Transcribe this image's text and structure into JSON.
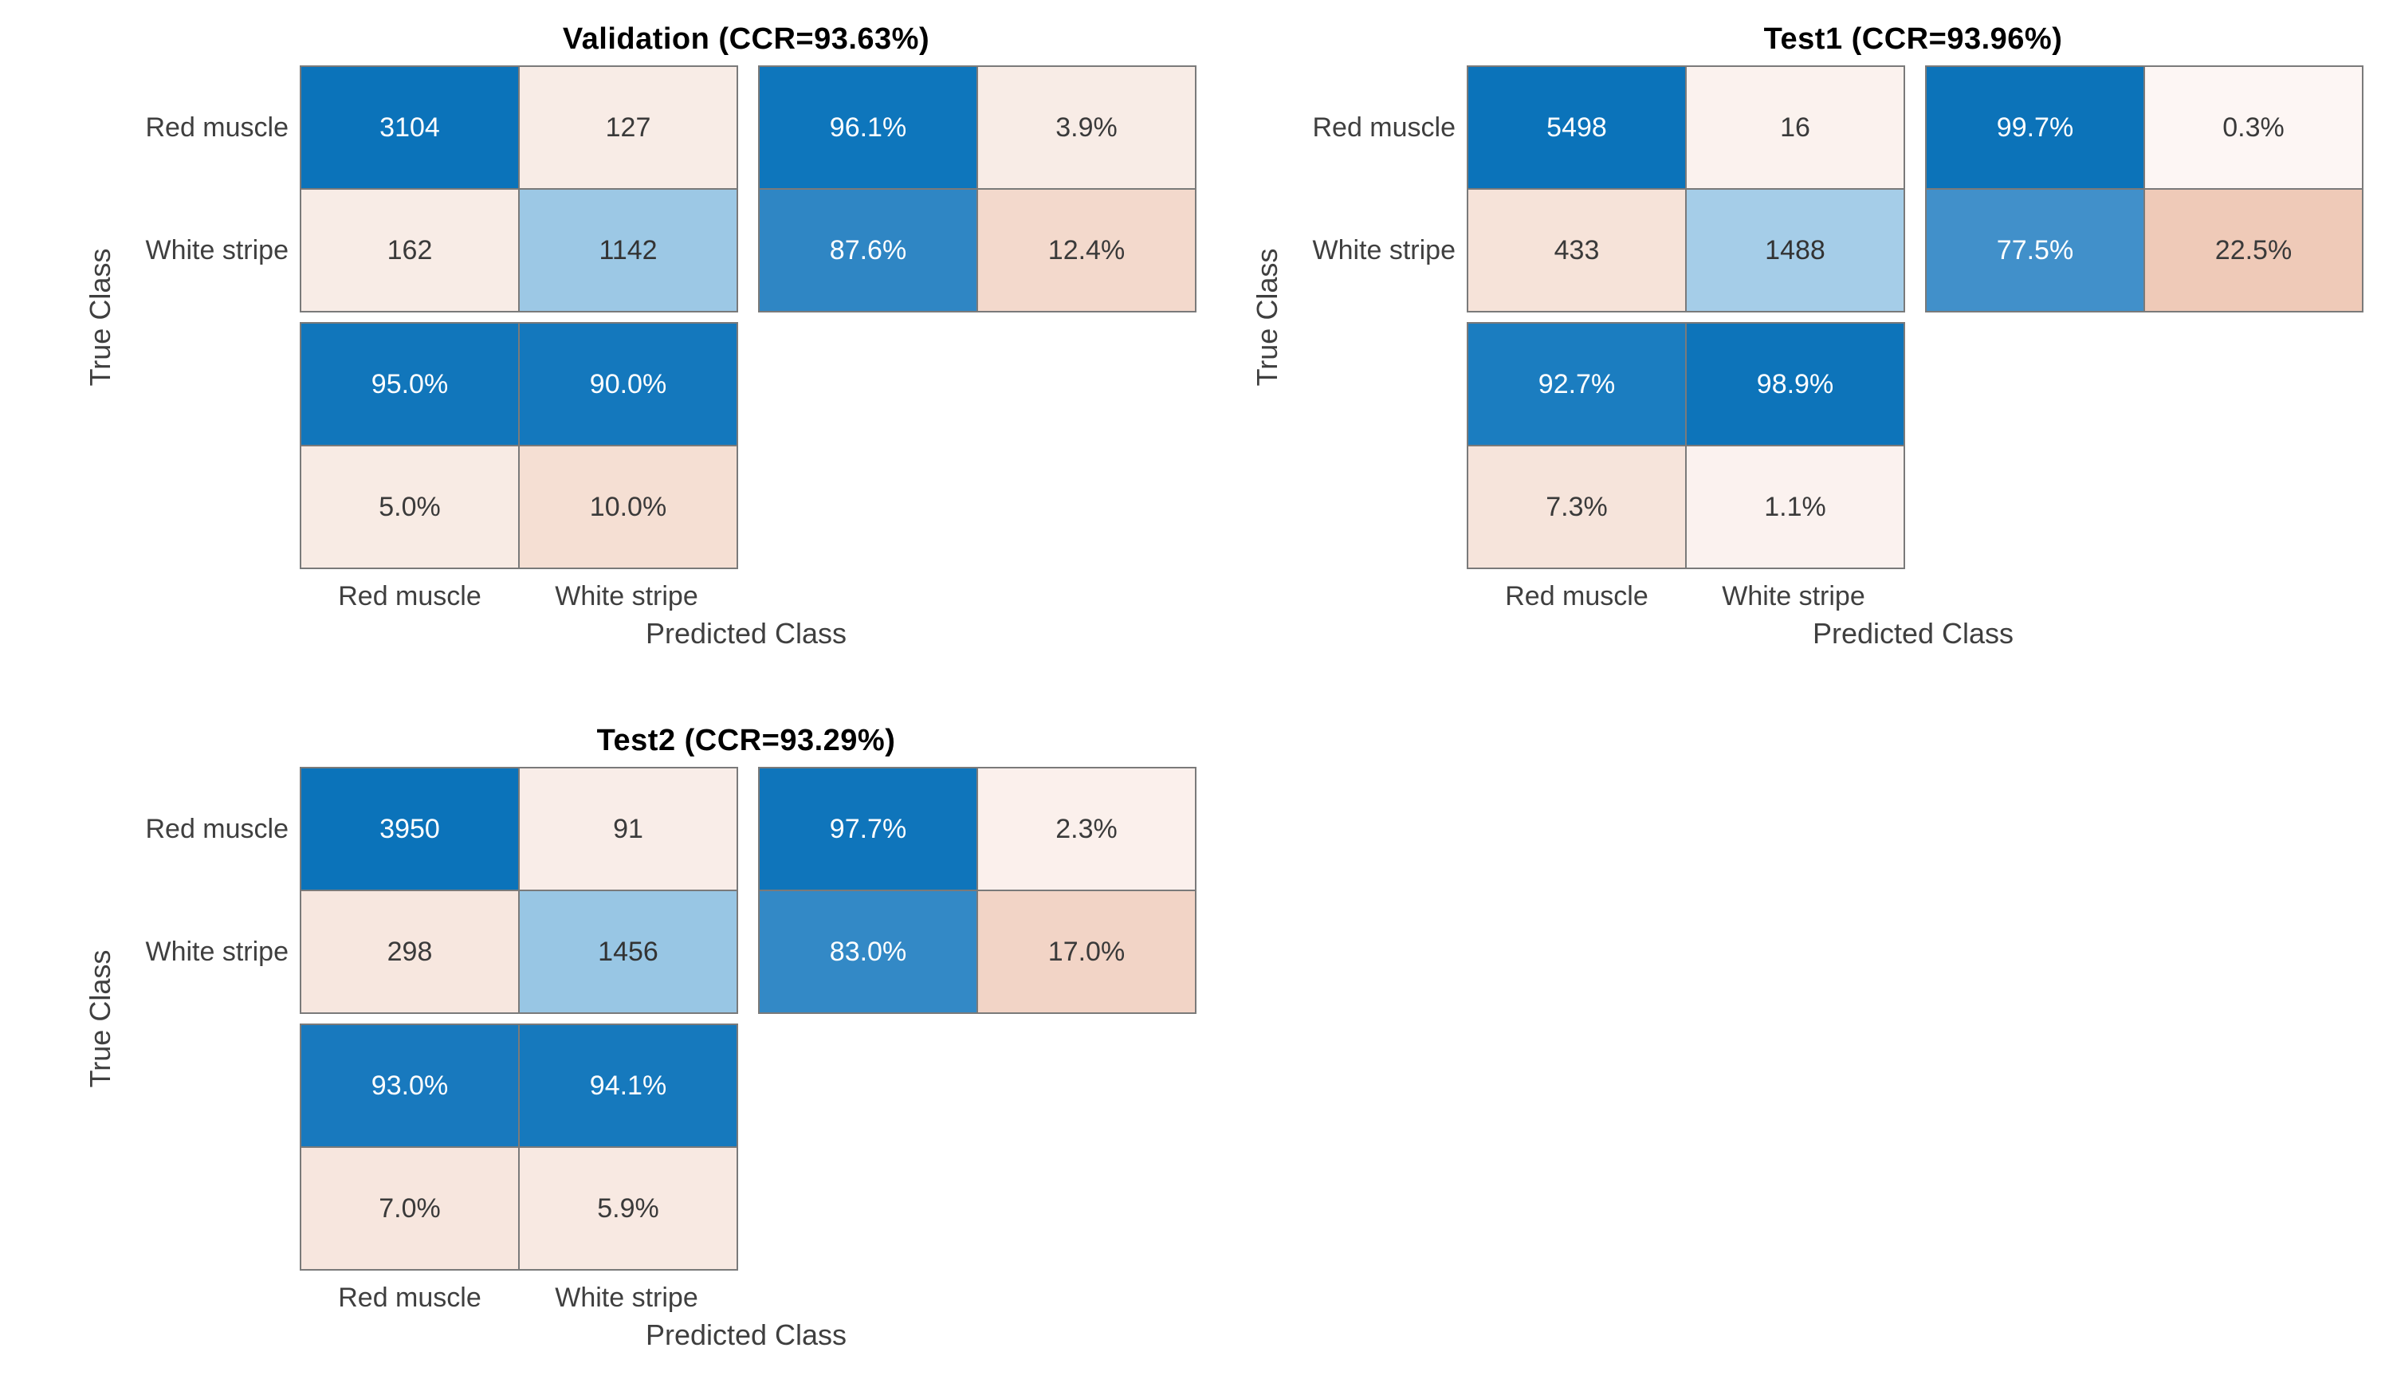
{
  "figure": {
    "background": "#ffffff",
    "palette": {
      "diagonal_blue": "#0b73ba",
      "light_blue": "#9cc8e5",
      "pale_pink": "#f8ece6",
      "grid_line": "#7a7a7a",
      "title_color": "#000000",
      "label_color": "#3f3f3f"
    }
  },
  "chart_data": [
    {
      "type": "heatmap",
      "kind": "confusion-matrix",
      "title": "Validation (CCR=93.63%)",
      "ccr": "93.63%",
      "x_label": "Predicted Class",
      "y_label": "True Class",
      "classes": [
        "Red muscle",
        "White stripe"
      ],
      "matrix": [
        [
          {
            "v": "3104",
            "bg": "#0b73ba",
            "fg": "#ffffff"
          },
          {
            "v": "127",
            "bg": "#f8ece6",
            "fg": "#3a3a3a"
          }
        ],
        [
          {
            "v": "162",
            "bg": "#f8ece6",
            "fg": "#3a3a3a"
          },
          {
            "v": "1142",
            "bg": "#9cc8e5",
            "fg": "#333333"
          }
        ]
      ],
      "row_summary": [
        [
          {
            "v": "96.1%",
            "bg": "#0e76bc",
            "fg": "#ffffff"
          },
          {
            "v": "3.9%",
            "bg": "#f8ece6",
            "fg": "#3a3a3a"
          }
        ],
        [
          {
            "v": "87.6%",
            "bg": "#2f86c4",
            "fg": "#ffffff"
          },
          {
            "v": "12.4%",
            "bg": "#f3d9cc",
            "fg": "#3a3a3a"
          }
        ]
      ],
      "col_summary": [
        [
          {
            "v": "95.0%",
            "bg": "#1176bb",
            "fg": "#ffffff"
          },
          {
            "v": "90.0%",
            "bg": "#1478bd",
            "fg": "#ffffff"
          }
        ],
        [
          {
            "v": "5.0%",
            "bg": "#f8ebe4",
            "fg": "#3a3a3a"
          },
          {
            "v": "10.0%",
            "bg": "#f5dfd3",
            "fg": "#3a3a3a"
          }
        ]
      ]
    },
    {
      "type": "heatmap",
      "kind": "confusion-matrix",
      "title": "Test1 (CCR=93.96%)",
      "ccr": "93.96%",
      "x_label": "Predicted Class",
      "y_label": "True Class",
      "classes": [
        "Red muscle",
        "White stripe"
      ],
      "matrix": [
        [
          {
            "v": "5498",
            "bg": "#0b73ba",
            "fg": "#ffffff"
          },
          {
            "v": "16",
            "bg": "#fbf2ee",
            "fg": "#3a3a3a"
          }
        ],
        [
          {
            "v": "433",
            "bg": "#f6e3d9",
            "fg": "#3a3a3a"
          },
          {
            "v": "1488",
            "bg": "#a5cde8",
            "fg": "#333333"
          }
        ]
      ],
      "row_summary": [
        [
          {
            "v": "99.7%",
            "bg": "#0c73b9",
            "fg": "#ffffff"
          },
          {
            "v": "0.3%",
            "bg": "#fdf6f4",
            "fg": "#3a3a3a"
          }
        ],
        [
          {
            "v": "77.5%",
            "bg": "#4190ca",
            "fg": "#ffffff"
          },
          {
            "v": "22.5%",
            "bg": "#efcab8",
            "fg": "#3a3a3a"
          }
        ]
      ],
      "col_summary": [
        [
          {
            "v": "92.7%",
            "bg": "#1b7dc0",
            "fg": "#ffffff"
          },
          {
            "v": "98.9%",
            "bg": "#0d74ba",
            "fg": "#ffffff"
          }
        ],
        [
          {
            "v": "7.3%",
            "bg": "#f6e4db",
            "fg": "#3a3a3a"
          },
          {
            "v": "1.1%",
            "bg": "#fbf2ef",
            "fg": "#3a3a3a"
          }
        ]
      ]
    },
    {
      "type": "heatmap",
      "kind": "confusion-matrix",
      "title": "Test2 (CCR=93.29%)",
      "ccr": "93.29%",
      "x_label": "Predicted Class",
      "y_label": "True Class",
      "classes": [
        "Red muscle",
        "White stripe"
      ],
      "matrix": [
        [
          {
            "v": "3950",
            "bg": "#0b73ba",
            "fg": "#ffffff"
          },
          {
            "v": "91",
            "bg": "#f9ede8",
            "fg": "#3a3a3a"
          }
        ],
        [
          {
            "v": "298",
            "bg": "#f7e7df",
            "fg": "#3a3a3a"
          },
          {
            "v": "1456",
            "bg": "#98c6e4",
            "fg": "#333333"
          }
        ]
      ],
      "row_summary": [
        [
          {
            "v": "97.7%",
            "bg": "#0f75bb",
            "fg": "#ffffff"
          },
          {
            "v": "2.3%",
            "bg": "#fbf0ec",
            "fg": "#3a3a3a"
          }
        ],
        [
          {
            "v": "83.0%",
            "bg": "#3389c6",
            "fg": "#ffffff"
          },
          {
            "v": "17.0%",
            "bg": "#f2d4c6",
            "fg": "#3a3a3a"
          }
        ]
      ],
      "col_summary": [
        [
          {
            "v": "93.0%",
            "bg": "#1879be",
            "fg": "#ffffff"
          },
          {
            "v": "94.1%",
            "bg": "#1679bd",
            "fg": "#ffffff"
          }
        ],
        [
          {
            "v": "7.0%",
            "bg": "#f7e6de",
            "fg": "#3a3a3a"
          },
          {
            "v": "5.9%",
            "bg": "#f8e9e2",
            "fg": "#3a3a3a"
          }
        ]
      ]
    }
  ]
}
